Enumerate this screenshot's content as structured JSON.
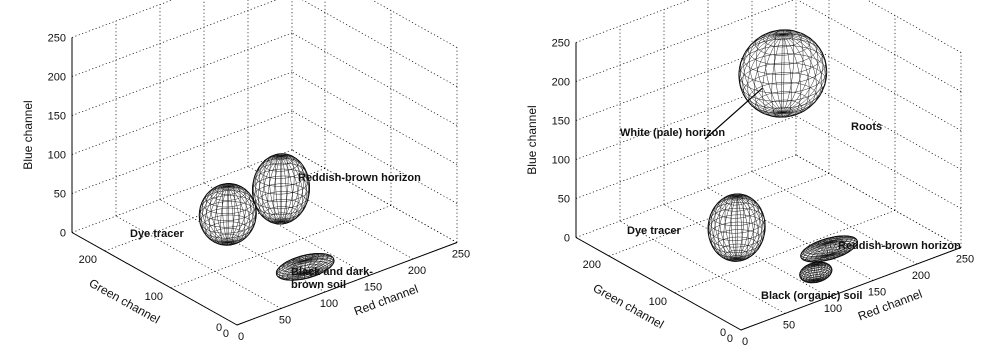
{
  "chart_data": [
    {
      "type": "scatter",
      "plot_kind": "3d-ellipsoids",
      "title": "",
      "xlabel": "Red channel",
      "ylabel": "Green channel",
      "zlabel": "Blue channel",
      "xlim": [
        0,
        250
      ],
      "ylim": [
        0,
        250
      ],
      "zlim": [
        0,
        250
      ],
      "xticks": [
        "0",
        "50",
        "100",
        "150",
        "200",
        "250"
      ],
      "yticks": [
        "0",
        "100",
        "200"
      ],
      "zticks": [
        "0",
        "50",
        "100",
        "150",
        "200",
        "250"
      ],
      "grid": true,
      "series": [
        {
          "name": "Dye tracer",
          "center": [
            57,
            90,
            75
          ],
          "radii": [
            26,
            26,
            36
          ],
          "color": "#222222"
        },
        {
          "name": "Reddish-brown horizon",
          "center": [
            110,
            80,
            90
          ],
          "radii": [
            26,
            26,
            42
          ],
          "color": "#222222"
        },
        {
          "name": "Black and dark-brown soil",
          "center": [
            100,
            30,
            18
          ],
          "radii": [
            30,
            18,
            8
          ],
          "color": "#222222"
        }
      ],
      "annotations": [
        {
          "text": "Dye tracer",
          "series": 0
        },
        {
          "text": "Reddish-brown horizon",
          "series": 1
        },
        {
          "text": "Black and dark- brown soil",
          "series": 2
        }
      ]
    },
    {
      "type": "scatter",
      "plot_kind": "3d-ellipsoids",
      "title": "",
      "xlabel": "Red channel",
      "ylabel": "Green channel",
      "zlabel": "Blue channel",
      "xlim": [
        0,
        250
      ],
      "ylim": [
        0,
        250
      ],
      "zlim": [
        0,
        250
      ],
      "xticks": [
        "0",
        "50",
        "100",
        "150",
        "200",
        "250"
      ],
      "yticks": [
        "0",
        "100",
        "200"
      ],
      "zticks": [
        "0",
        "50",
        "100",
        "150",
        "200",
        "250"
      ],
      "grid": true,
      "series": [
        {
          "name": "Dye tracer",
          "center": [
            55,
            80,
            70
          ],
          "radii": [
            26,
            26,
            40
          ],
          "color": "#222222"
        },
        {
          "name": "Roots",
          "center": [
            160,
            150,
            190
          ],
          "radii": [
            40,
            40,
            50
          ],
          "color": "#222222"
        },
        {
          "name": "White (pale) horizon",
          "center": [
            145,
            155,
            170
          ],
          "radii": [
            13,
            13,
            18
          ],
          "color": "#222222"
        },
        {
          "name": "Reddish-brown horizon",
          "center": [
            130,
            40,
            30
          ],
          "radii": [
            30,
            16,
            8
          ],
          "color": "#222222"
        },
        {
          "name": "Black (organic) soil",
          "center": [
            100,
            20,
            22
          ],
          "radii": [
            16,
            12,
            10
          ],
          "color": "#222222"
        }
      ],
      "annotations": [
        {
          "text": "Dye tracer",
          "series": 0
        },
        {
          "text": "Roots",
          "series": 1
        },
        {
          "text": "White (pale) horizon",
          "series": 2
        },
        {
          "text": "Reddish-brown horizon",
          "series": 3
        },
        {
          "text": "Black (organic) soil",
          "series": 4
        }
      ]
    }
  ]
}
